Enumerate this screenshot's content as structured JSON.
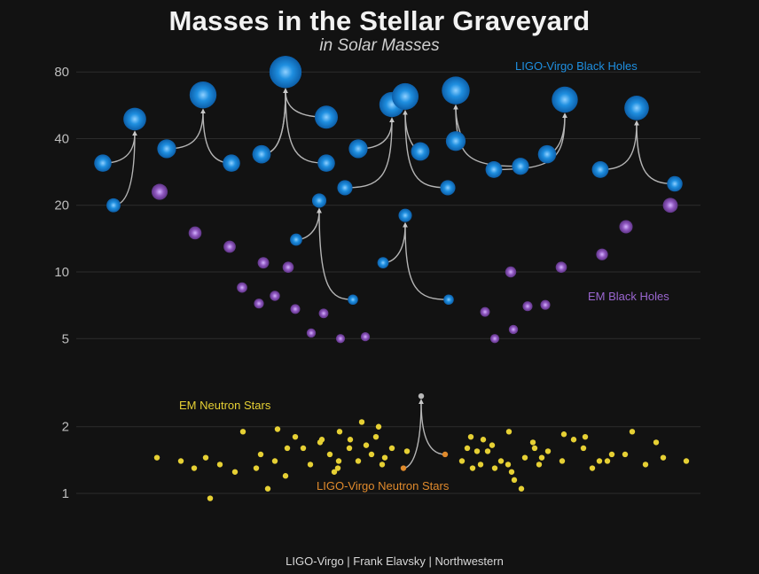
{
  "chart_data": {
    "type": "scatter",
    "title": "Masses in the Stellar Graveyard",
    "subtitle": "in Solar Masses",
    "credit": "LIGO-Virgo | Frank Elavsky | Northwestern",
    "y_scale": "log",
    "ylim": [
      0.85,
      95
    ],
    "y_ticks": [
      {
        "value": 1,
        "label": "1"
      },
      {
        "value": 2,
        "label": "2"
      },
      {
        "value": 5,
        "label": "5"
      },
      {
        "value": 10,
        "label": "10"
      },
      {
        "value": 20,
        "label": "20"
      },
      {
        "value": 40,
        "label": "40"
      },
      {
        "value": 80,
        "label": "80"
      }
    ],
    "grid": true,
    "colors": {
      "ligo_bh": "#1f8fe0",
      "em_bh": "#9058c0",
      "em_ns": "#e6d034",
      "ligo_ns": "#e08a2c",
      "remnant_ns": "#b8b8b8",
      "arrow": "#b5b5b5"
    },
    "labels": {
      "ligo_bh": "LIGO-Virgo Black Holes",
      "em_bh": "EM Black Holes",
      "em_ns": "EM Neutron Stars",
      "ligo_ns": "LIGO-Virgo Neutron Stars"
    },
    "ligo_mergers": [
      {
        "m1": 31,
        "m2": 20,
        "final": 49
      },
      {
        "m1": 36,
        "m2": 31,
        "final": 63
      },
      {
        "m1": 34,
        "m2": 31,
        "final": 80
      },
      {
        "m1": 50,
        "m2": 34,
        "final": 80
      },
      {
        "m1": 36,
        "m2": 24,
        "final": 57
      },
      {
        "m1": 35,
        "m2": 24,
        "final": 62
      },
      {
        "m1": 39,
        "m2": 30,
        "final": 66
      },
      {
        "m1": 29,
        "m2": 34,
        "final": 60
      },
      {
        "m1": 29,
        "m2": 25,
        "final": 55
      },
      {
        "m1": 14,
        "m2": 7.5,
        "final": 21
      },
      {
        "m1": 11,
        "m2": 7.5,
        "final": 18
      }
    ],
    "em_black_holes": [
      23,
      15,
      13,
      11,
      10.5,
      8.5,
      7.8,
      7.2,
      6.8,
      6.5,
      5.3,
      5,
      5.1,
      6.6,
      5,
      5.5,
      7,
      7.1,
      10,
      10.5,
      12,
      16,
      20
    ],
    "em_neutron_stars": [
      1.45,
      1.4,
      1.3,
      1.45,
      0.95,
      1.35,
      1.25,
      1.9,
      1.3,
      1.5,
      1.05,
      1.4,
      1.6,
      1.95,
      1.2,
      1.8,
      1.6,
      1.35,
      1.7,
      1.75,
      1.5,
      1.25,
      1.3,
      1.4,
      1.9,
      1.6,
      1.75,
      1.4,
      2.1,
      1.65,
      1.5,
      1.8,
      1.35,
      1.45,
      2.0,
      1.6,
      1.55,
      1.4,
      1.6,
      1.8,
      1.3,
      1.55,
      1.35,
      1.75,
      1.55,
      1.65,
      1.3,
      1.4,
      1.9,
      1.35,
      1.25,
      1.15,
      1.05,
      1.45,
      1.7,
      1.6,
      1.35,
      1.45,
      1.55,
      1.85,
      1.75,
      1.4,
      1.8,
      1.4,
      1.3,
      1.6,
      1.4,
      1.5,
      1.5,
      1.9,
      1.35,
      1.7,
      1.45,
      1.4
    ],
    "ligo_neutron_star_merger": {
      "m1": 1.3,
      "m2": 1.5,
      "final": 2.75
    }
  }
}
